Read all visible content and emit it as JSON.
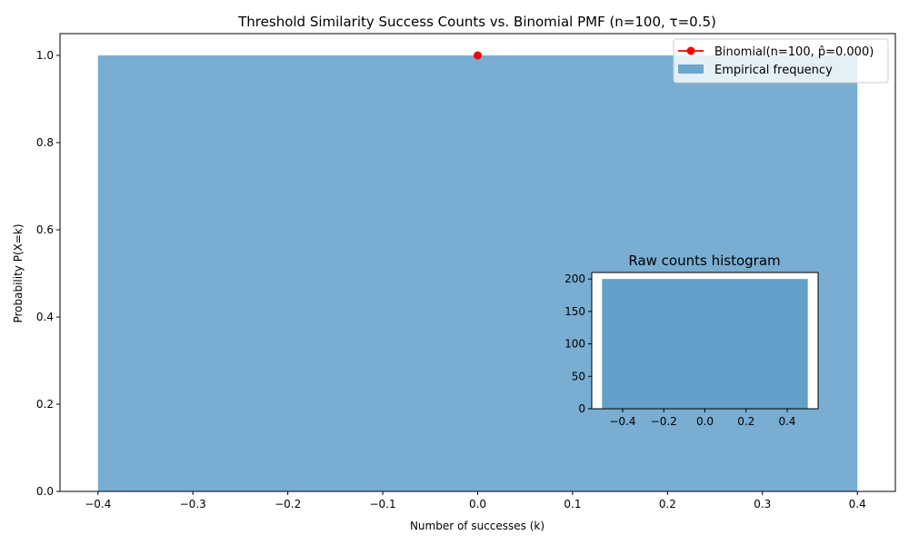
{
  "chart_data": [
    {
      "type": "bar",
      "title": "Threshold Similarity Success Counts vs. Binomial PMF (n=100, τ=0.5)",
      "xlabel": "Number of successes (k)",
      "ylabel": "Probability P(X=k)",
      "xlim": [
        -0.44,
        0.44
      ],
      "ylim": [
        0,
        1.05
      ],
      "x_ticks": [
        -0.4,
        -0.3,
        -0.2,
        -0.1,
        0.0,
        0.1,
        0.2,
        0.3,
        0.4
      ],
      "x_tick_labels": [
        "−0.4",
        "−0.3",
        "−0.2",
        "−0.1",
        "0.0",
        "0.1",
        "0.2",
        "0.3",
        "0.4"
      ],
      "y_ticks": [
        0,
        0.2,
        0.4,
        0.6,
        0.8,
        1.0
      ],
      "y_tick_labels": [
        "0.0",
        "0.2",
        "0.4",
        "0.6",
        "0.8",
        "1.0"
      ],
      "grid": false,
      "legend_position": "top-right",
      "series": [
        {
          "name": "Empirical frequency",
          "kind": "bar",
          "color": "#1f77b4",
          "opacity": 0.6,
          "bars": [
            {
              "x_start": -0.4,
              "x_end": 0.4,
              "value": 1.0
            }
          ]
        },
        {
          "name": "Binomial(n=100, p̂=0.000)",
          "kind": "line",
          "marker": "circle",
          "color": "#ff0000",
          "points": [
            {
              "x": 0.0,
              "y": 1.0
            }
          ]
        }
      ]
    },
    {
      "type": "bar",
      "title": "Raw counts histogram",
      "xlabel": "",
      "ylabel": "",
      "xlim": [
        -0.55,
        0.55
      ],
      "ylim": [
        0,
        210
      ],
      "x_ticks": [
        -0.4,
        -0.2,
        0.0,
        0.2,
        0.4
      ],
      "x_tick_labels": [
        "−0.4",
        "−0.2",
        "0.0",
        "0.2",
        "0.4"
      ],
      "y_ticks": [
        0,
        50,
        100,
        150,
        200
      ],
      "y_tick_labels": [
        "0",
        "50",
        "100",
        "150",
        "200"
      ],
      "grid": false,
      "series": [
        {
          "kind": "bar",
          "color": "#1f77b4",
          "opacity": 0.7,
          "bars": [
            {
              "x_start": -0.5,
              "x_end": 0.5,
              "value": 200
            }
          ]
        }
      ]
    }
  ]
}
